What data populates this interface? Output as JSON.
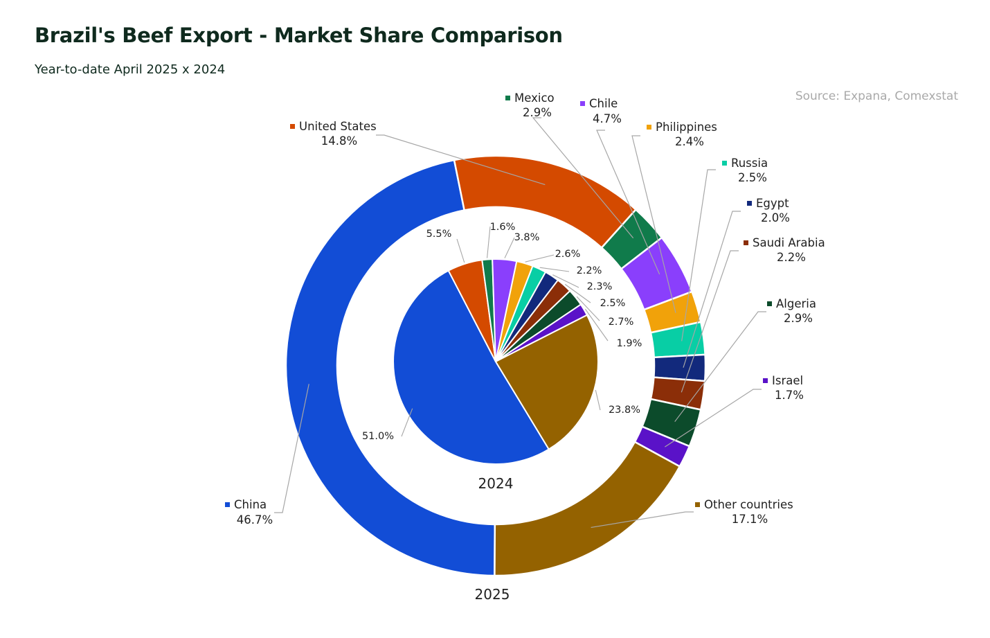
{
  "title": "Brazil's Beef Export - Market Share Comparison",
  "subtitle": "Year-to-date April 2025 x 2024",
  "source": "Source: Expana, Comexstat",
  "chart_data": {
    "type": "pie",
    "title": "Brazil's Beef Export - Market Share Comparison",
    "subtitle": "Year-to-date April 2025 x 2024",
    "categories": [
      "China",
      "United States",
      "Mexico",
      "Chile",
      "Philippines",
      "Russia",
      "Egypt",
      "Saudi Arabia",
      "Algeria",
      "Israel",
      "Other countries"
    ],
    "colors": [
      "#124dd6",
      "#d44a00",
      "#107b4b",
      "#8a3ffc",
      "#f1a20a",
      "#08cea5",
      "#12297c",
      "#8b2e08",
      "#0c4b2b",
      "#5a12c8",
      "#946200"
    ],
    "series": [
      {
        "name": "2025",
        "ring": "outer",
        "values": [
          46.7,
          14.8,
          2.9,
          4.7,
          2.4,
          2.5,
          2.0,
          2.2,
          2.9,
          1.7,
          17.1
        ],
        "labels": [
          "46.7%",
          "14.8%",
          "2.9%",
          "4.7%",
          "2.4%",
          "2.5%",
          "2.0%",
          "2.2%",
          "2.9%",
          "1.7%",
          "17.1%"
        ]
      },
      {
        "name": "2024",
        "ring": "inner",
        "values": [
          51.0,
          5.5,
          1.6,
          3.8,
          2.6,
          2.2,
          2.3,
          2.5,
          2.7,
          1.9,
          23.8
        ],
        "labels": [
          "51.0%",
          "5.5%",
          "1.6%",
          "3.8%",
          "2.6%",
          "2.2%",
          "2.3%",
          "2.5%",
          "2.7%",
          "1.9%",
          "23.8%"
        ]
      }
    ],
    "legend": "inline-callouts"
  }
}
